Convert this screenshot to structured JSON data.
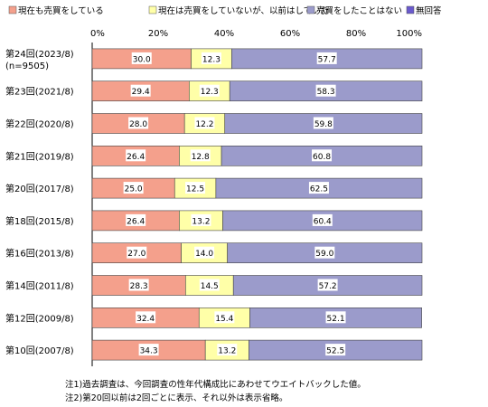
{
  "chart_data": {
    "type": "bar",
    "orientation": "horizontal",
    "stacked": "percent",
    "legend_position": "top",
    "categories": [
      "第24回(2023/8)",
      "第23回(2021/8)",
      "第22回(2020/8)",
      "第21回(2019/8)",
      "第20回(2017/8)",
      "第18回(2015/8)",
      "第16回(2013/8)",
      "第14回(2011/8)",
      "第12回(2009/8)",
      "第10回(2007/8)"
    ],
    "category_sublabels": [
      "(n=9505)",
      "",
      "",
      "",
      "",
      "",
      "",
      "",
      "",
      ""
    ],
    "series": [
      {
        "name": "現在も売買をしている",
        "color": "#f4a08c",
        "values": [
          30.0,
          29.4,
          28.0,
          26.4,
          25.0,
          26.4,
          27.0,
          28.3,
          32.4,
          34.3
        ]
      },
      {
        "name": "現在は売買をしていないが、以前はしていた",
        "color": "#ffffa8",
        "values": [
          12.3,
          12.3,
          12.2,
          12.8,
          12.5,
          13.2,
          14.0,
          14.5,
          15.4,
          13.2
        ]
      },
      {
        "name": "売買をしたことはない",
        "color": "#9b9bcb",
        "values": [
          57.7,
          58.3,
          59.8,
          60.8,
          62.5,
          60.4,
          59.0,
          57.2,
          52.1,
          52.5
        ]
      },
      {
        "name": "無回答",
        "color": "#6a5acd",
        "values": [
          0,
          0,
          0,
          0,
          0,
          0,
          0,
          0,
          0,
          0
        ]
      }
    ],
    "x_ticks": [
      "0%",
      "20%",
      "40%",
      "60%",
      "80%",
      "100%"
    ],
    "xlim": [
      0,
      100
    ],
    "grid": false
  },
  "notes": [
    "注1)過去調査は、今回調査の性年代構成比にあわせてウエイトバックした値。",
    "注2)第20回以前は2回ごとに表示、それ以外は表示省略。"
  ]
}
